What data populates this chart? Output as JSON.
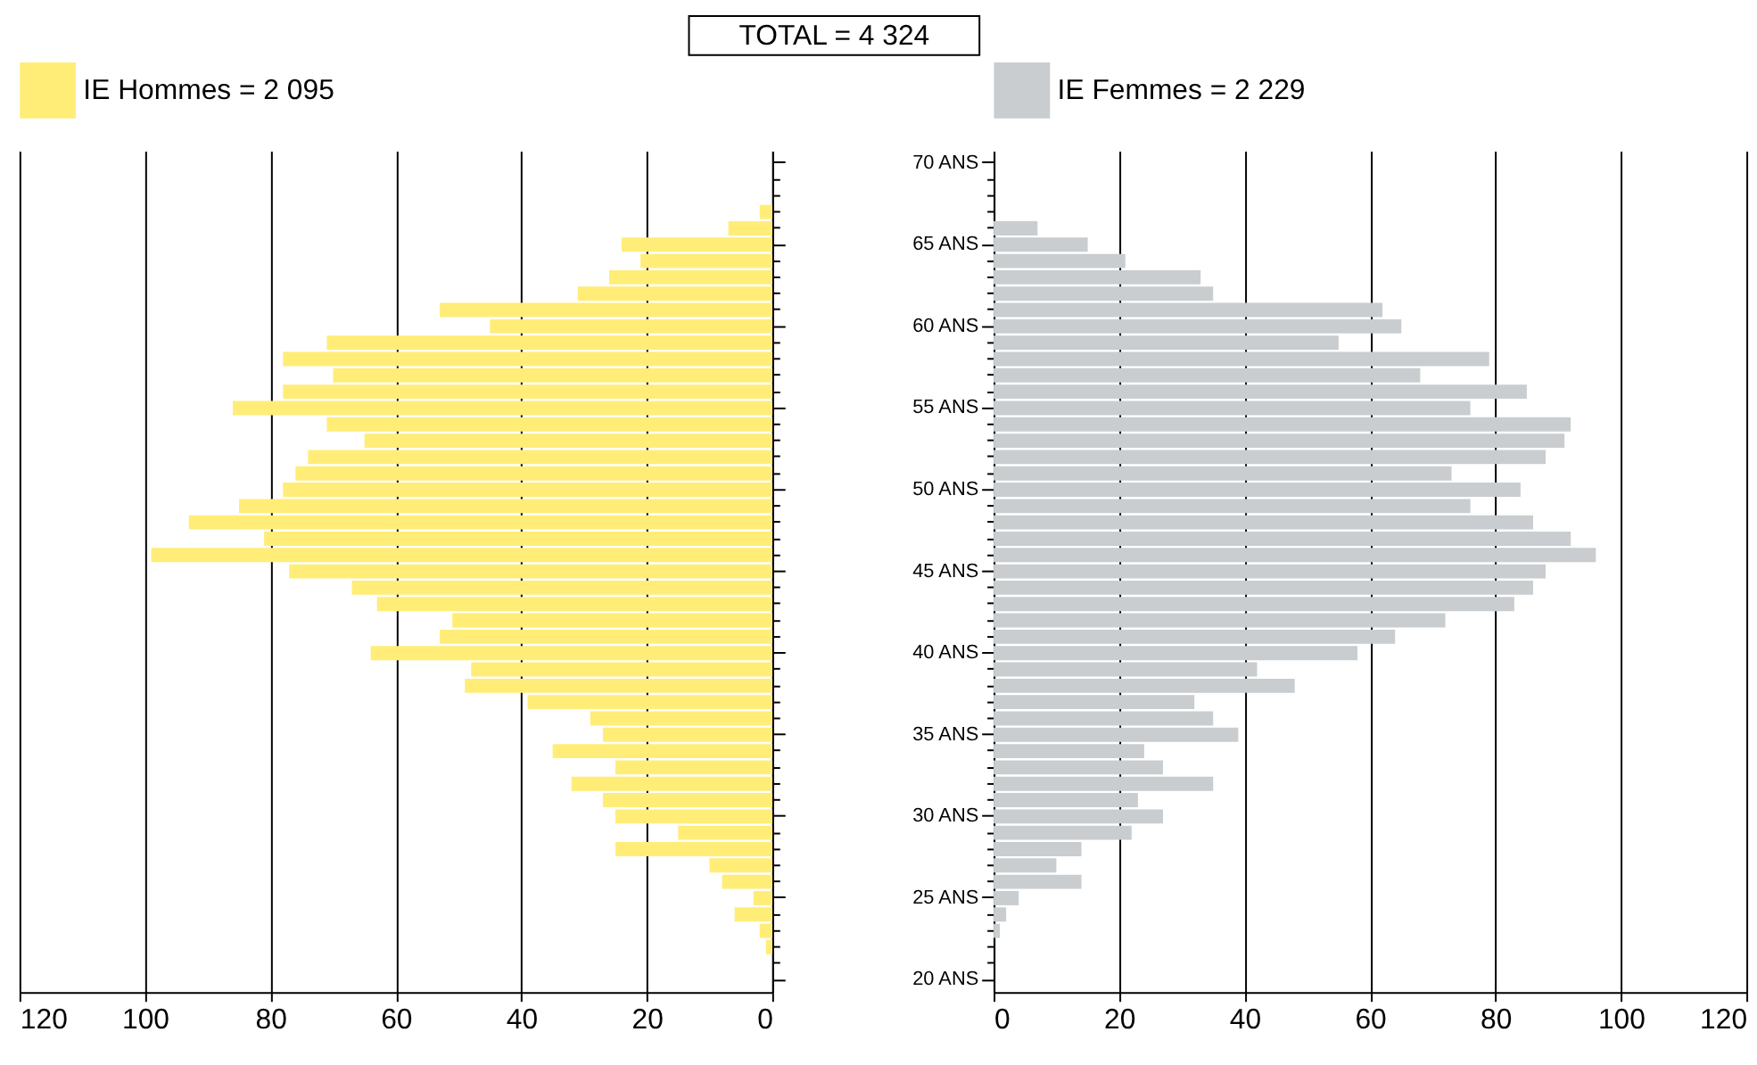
{
  "chart_data": [
    {
      "type": "bar",
      "orientation": "horizontal",
      "title": "TOTAL = 4 324",
      "categories": [
        "70 ANS",
        null,
        null,
        null,
        null,
        "65 ANS",
        null,
        null,
        null,
        null,
        "60 ANS",
        null,
        null,
        null,
        null,
        "55 ANS",
        null,
        null,
        null,
        null,
        "50 ANS",
        null,
        null,
        null,
        null,
        "45 ANS",
        null,
        null,
        null,
        null,
        "40 ANS",
        null,
        null,
        null,
        null,
        "35 ANS",
        null,
        null,
        null,
        null,
        "30 ANS",
        null,
        null,
        null,
        null,
        "25 ANS",
        null,
        null,
        null,
        null,
        "20 ANS"
      ],
      "series": [
        {
          "name": "IE Hommes = 2 095",
          "color": "#ffed78",
          "values": [
            null,
            null,
            null,
            2,
            7,
            24,
            21,
            26,
            31,
            53,
            45,
            71,
            78,
            70,
            78,
            86,
            71,
            65,
            74,
            76,
            78,
            85,
            93,
            81,
            99,
            77,
            67,
            63,
            51,
            53,
            64,
            48,
            49,
            39,
            29,
            27,
            35,
            25,
            32,
            27,
            25,
            15,
            25,
            10,
            8,
            3,
            6,
            2,
            1,
            null,
            null
          ]
        }
      ],
      "xlim": [
        120,
        0
      ],
      "xticks": [
        120,
        100,
        80,
        60,
        40,
        20,
        0
      ],
      "grid": "x",
      "legend": "top",
      "tick_labels": "x"
    },
    {
      "type": "bar",
      "orientation": "horizontal",
      "categories": [
        "70 ANS",
        null,
        null,
        null,
        null,
        "65 ANS",
        null,
        null,
        null,
        null,
        "60 ANS",
        null,
        null,
        null,
        null,
        "55 ANS",
        null,
        null,
        null,
        null,
        "50 ANS",
        null,
        null,
        null,
        null,
        "45 ANS",
        null,
        null,
        null,
        null,
        "40 ANS",
        null,
        null,
        null,
        null,
        "35 ANS",
        null,
        null,
        null,
        null,
        "30 ANS",
        null,
        null,
        null,
        null,
        "25 ANS",
        null,
        null,
        null,
        null,
        "20 ANS"
      ],
      "series": [
        {
          "name": "IE Femmes = 2 229",
          "color": "#c9cdcf",
          "values": [
            null,
            null,
            null,
            null,
            7,
            15,
            21,
            33,
            35,
            62,
            65,
            55,
            79,
            68,
            85,
            76,
            92,
            91,
            88,
            73,
            84,
            76,
            86,
            92,
            96,
            88,
            86,
            83,
            72,
            64,
            58,
            42,
            48,
            32,
            35,
            39,
            24,
            27,
            35,
            23,
            27,
            22,
            14,
            10,
            14,
            4,
            2,
            1,
            null,
            null,
            null
          ]
        }
      ],
      "xlim": [
        0,
        120
      ],
      "xticks": [
        0,
        20,
        40,
        60,
        80,
        100,
        120
      ],
      "grid": "x",
      "legend": "top"
    }
  ]
}
